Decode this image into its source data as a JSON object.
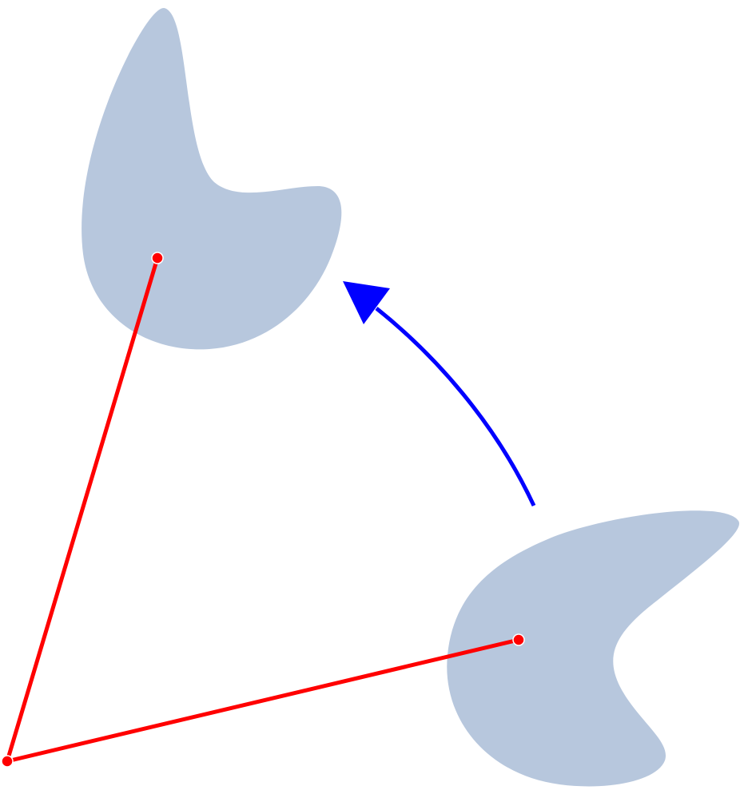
{
  "diagram": {
    "description_kind": "rotation-illustration",
    "colors": {
      "shape_fill": "#b7c7dd",
      "radius_line": "#ff0000",
      "point_fill": "#ff0000",
      "arrow": "#0000ff",
      "background": "#ffffff"
    },
    "elements": [
      "rotated-shape",
      "original-shape",
      "rotation-center-point",
      "radius-line-to-rotated",
      "radius-line-to-original",
      "rotated-shape-center-point",
      "original-shape-center-point",
      "rotation-arrow"
    ]
  }
}
